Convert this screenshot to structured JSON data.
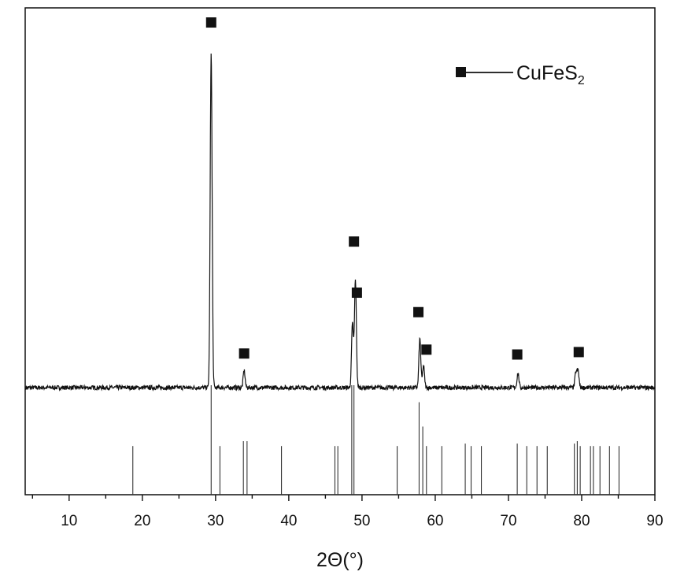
{
  "chart_data": {
    "type": "line",
    "title": "",
    "xlabel": "2Θ(°)",
    "ylabel": "",
    "xlim": [
      4,
      90
    ],
    "ylim": [
      0,
      100
    ],
    "x_ticks": [
      10,
      20,
      30,
      40,
      50,
      60,
      70,
      80,
      90
    ],
    "x_ticks_labels": [
      "10",
      "20",
      "30",
      "40",
      "50",
      "60",
      "70",
      "80",
      "90"
    ],
    "grid": false,
    "legend": {
      "position": "top-right",
      "marker": "filled-square",
      "label_main": "CuFeS",
      "label_subscript": "2"
    },
    "series": [
      {
        "name": "CuFeS2",
        "baseline": 22,
        "peaks": [
          {
            "x": 29.4,
            "y": 91
          },
          {
            "x": 33.9,
            "y": 25.5
          },
          {
            "x": 48.7,
            "y": 35
          },
          {
            "x": 49.1,
            "y": 44
          },
          {
            "x": 57.9,
            "y": 32
          },
          {
            "x": 58.4,
            "y": 26.5
          },
          {
            "x": 71.3,
            "y": 25
          },
          {
            "x": 79.2,
            "y": 25
          },
          {
            "x": 79.5,
            "y": 25.5
          }
        ]
      }
    ],
    "peak_markers": [
      {
        "x": 29.4,
        "y": 97
      },
      {
        "x": 33.9,
        "y": 29
      },
      {
        "x": 48.9,
        "y": 52
      },
      {
        "x": 49.3,
        "y": 41.5
      },
      {
        "x": 57.7,
        "y": 37.5
      },
      {
        "x": 58.8,
        "y": 29.8
      },
      {
        "x": 71.2,
        "y": 28.8
      },
      {
        "x": 79.6,
        "y": 29.3
      }
    ],
    "reference_lines": [
      {
        "x": 18.7,
        "y": 10
      },
      {
        "x": 29.4,
        "y": 22.5
      },
      {
        "x": 30.6,
        "y": 10
      },
      {
        "x": 33.8,
        "y": 11
      },
      {
        "x": 34.3,
        "y": 11
      },
      {
        "x": 39.0,
        "y": 10
      },
      {
        "x": 46.3,
        "y": 10
      },
      {
        "x": 46.7,
        "y": 10
      },
      {
        "x": 48.6,
        "y": 22.5
      },
      {
        "x": 48.9,
        "y": 22.5
      },
      {
        "x": 54.8,
        "y": 10
      },
      {
        "x": 57.8,
        "y": 19
      },
      {
        "x": 58.3,
        "y": 14
      },
      {
        "x": 58.8,
        "y": 10
      },
      {
        "x": 60.9,
        "y": 10
      },
      {
        "x": 64.1,
        "y": 10.5
      },
      {
        "x": 64.9,
        "y": 10
      },
      {
        "x": 66.3,
        "y": 10
      },
      {
        "x": 71.2,
        "y": 10.5
      },
      {
        "x": 72.5,
        "y": 10
      },
      {
        "x": 73.9,
        "y": 10
      },
      {
        "x": 75.3,
        "y": 10
      },
      {
        "x": 79.0,
        "y": 10.5
      },
      {
        "x": 79.4,
        "y": 11
      },
      {
        "x": 79.8,
        "y": 10
      },
      {
        "x": 81.2,
        "y": 10
      },
      {
        "x": 81.6,
        "y": 10
      },
      {
        "x": 82.5,
        "y": 10
      },
      {
        "x": 83.8,
        "y": 10
      },
      {
        "x": 85.1,
        "y": 10
      }
    ]
  }
}
